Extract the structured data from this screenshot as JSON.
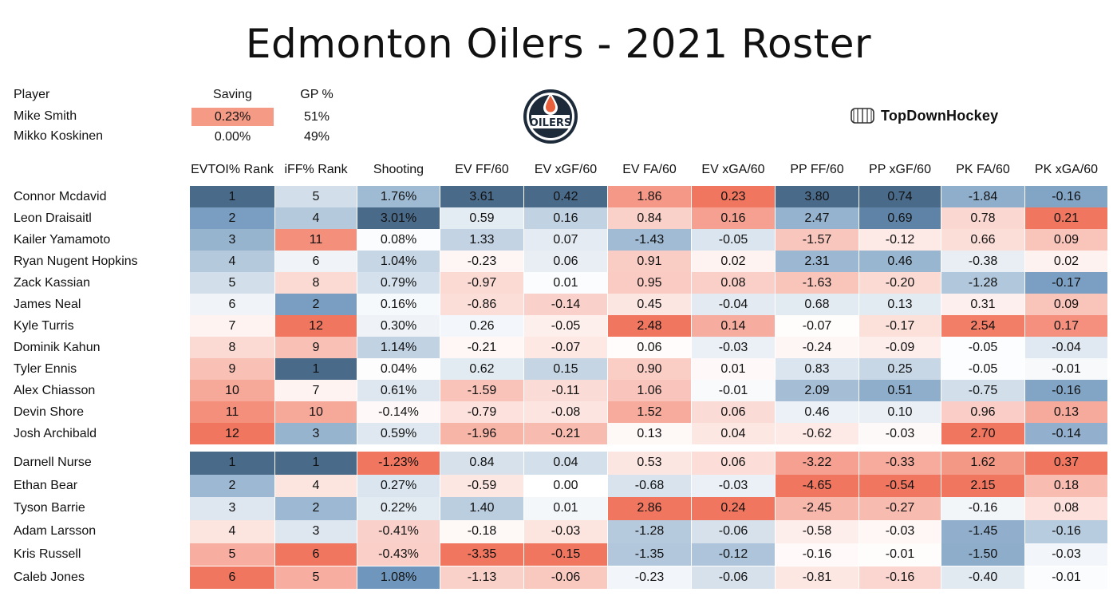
{
  "title": "Edmonton Oilers - 2021 Roster",
  "brand": {
    "name": "TopDownHockey",
    "icon": "hockey-rink-icon"
  },
  "logo": {
    "text": "OILERS"
  },
  "goalies": {
    "headers": [
      "Player",
      "Saving",
      "GP %"
    ],
    "rows": [
      {
        "player": "Mike Smith",
        "saving": "0.23%",
        "gp": "51%"
      },
      {
        "player": "Mikko Koskinen",
        "saving": "0.00%",
        "gp": "49%"
      }
    ]
  },
  "table": {
    "headers": [
      "EVTOI% Rank",
      "iFF% Rank",
      "Shooting",
      "EV FF/60",
      "EV xGF/60",
      "EV FA/60",
      "EV xGA/60",
      "PP FF/60",
      "PP xGF/60",
      "PK FA/60",
      "PK xGA/60"
    ],
    "forwards": [
      {
        "player": "Connor Mcdavid",
        "values": [
          "1",
          "5",
          "1.76%",
          "3.61",
          "0.42",
          "1.86",
          "0.23",
          "3.80",
          "0.74",
          "-1.84",
          "-0.16"
        ]
      },
      {
        "player": "Leon Draisaitl",
        "values": [
          "2",
          "4",
          "3.01%",
          "0.59",
          "0.16",
          "0.84",
          "0.16",
          "2.47",
          "0.69",
          "0.78",
          "0.21"
        ]
      },
      {
        "player": "Kailer Yamamoto",
        "values": [
          "3",
          "11",
          "0.08%",
          "1.33",
          "0.07",
          "-1.43",
          "-0.05",
          "-1.57",
          "-0.12",
          "0.66",
          "0.09"
        ]
      },
      {
        "player": "Ryan Nugent Hopkins",
        "values": [
          "4",
          "6",
          "1.04%",
          "-0.23",
          "0.06",
          "0.91",
          "0.02",
          "2.31",
          "0.46",
          "-0.38",
          "0.02"
        ]
      },
      {
        "player": "Zack Kassian",
        "values": [
          "5",
          "8",
          "0.79%",
          "-0.97",
          "0.01",
          "0.95",
          "0.08",
          "-1.63",
          "-0.20",
          "-1.28",
          "-0.17"
        ]
      },
      {
        "player": "James Neal",
        "values": [
          "6",
          "2",
          "0.16%",
          "-0.86",
          "-0.14",
          "0.45",
          "-0.04",
          "0.68",
          "0.13",
          "0.31",
          "0.09"
        ]
      },
      {
        "player": "Kyle Turris",
        "values": [
          "7",
          "12",
          "0.30%",
          "0.26",
          "-0.05",
          "2.48",
          "0.14",
          "-0.07",
          "-0.17",
          "2.54",
          "0.17"
        ]
      },
      {
        "player": "Dominik Kahun",
        "values": [
          "8",
          "9",
          "1.14%",
          "-0.21",
          "-0.07",
          "0.06",
          "-0.03",
          "-0.24",
          "-0.09",
          "-0.05",
          "-0.04"
        ]
      },
      {
        "player": "Tyler Ennis",
        "values": [
          "9",
          "1",
          "0.04%",
          "0.62",
          "0.15",
          "0.90",
          "0.01",
          "0.83",
          "0.25",
          "-0.05",
          "-0.01"
        ]
      },
      {
        "player": "Alex Chiasson",
        "values": [
          "10",
          "7",
          "0.61%",
          "-1.59",
          "-0.11",
          "1.06",
          "-0.01",
          "2.09",
          "0.51",
          "-0.75",
          "-0.16"
        ]
      },
      {
        "player": "Devin Shore",
        "values": [
          "11",
          "10",
          "-0.14%",
          "-0.79",
          "-0.08",
          "1.52",
          "0.06",
          "0.46",
          "0.10",
          "0.96",
          "0.13"
        ]
      },
      {
        "player": "Josh Archibald",
        "values": [
          "12",
          "3",
          "0.59%",
          "-1.96",
          "-0.21",
          "0.13",
          "0.04",
          "-0.62",
          "-0.03",
          "2.70",
          "-0.14"
        ]
      }
    ],
    "defense": [
      {
        "player": "Darnell Nurse",
        "values": [
          "1",
          "1",
          "-1.23%",
          "0.84",
          "0.04",
          "0.53",
          "0.06",
          "-3.22",
          "-0.33",
          "1.62",
          "0.37"
        ]
      },
      {
        "player": "Ethan Bear",
        "values": [
          "2",
          "4",
          "0.27%",
          "-0.59",
          "0.00",
          "-0.68",
          "-0.03",
          "-4.65",
          "-0.54",
          "2.15",
          "0.18"
        ]
      },
      {
        "player": "Tyson Barrie",
        "values": [
          "3",
          "2",
          "0.22%",
          "1.40",
          "0.01",
          "2.86",
          "0.24",
          "-2.45",
          "-0.27",
          "-0.16",
          "0.08"
        ]
      },
      {
        "player": "Adam Larsson",
        "values": [
          "4",
          "3",
          "-0.41%",
          "-0.18",
          "-0.03",
          "-1.28",
          "-0.06",
          "-0.58",
          "-0.03",
          "-1.45",
          "-0.16"
        ]
      },
      {
        "player": "Kris Russell",
        "values": [
          "5",
          "6",
          "-0.43%",
          "-3.35",
          "-0.15",
          "-1.35",
          "-0.12",
          "-0.16",
          "-0.01",
          "-1.50",
          "-0.03"
        ]
      },
      {
        "player": "Caleb Jones",
        "values": [
          "6",
          "5",
          "1.08%",
          "-1.13",
          "-0.06",
          "-0.23",
          "-0.06",
          "-0.81",
          "-0.16",
          "-0.40",
          "-0.01"
        ]
      }
    ]
  },
  "colors": {
    "good": "#6f97bd",
    "bad": "#f1765f",
    "dark_good": "#4a6a8a",
    "neutral": "#ffffff",
    "text": "#111111"
  },
  "chart_data": {
    "type": "table",
    "title": "Edmonton Oilers - 2021 Roster",
    "columns": [
      "Player",
      "EVTOI% Rank",
      "iFF% Rank",
      "Shooting",
      "EV FF/60",
      "EV xGF/60",
      "EV FA/60",
      "EV xGA/60",
      "PP FF/60",
      "PP xGF/60",
      "PK FA/60",
      "PK xGA/60"
    ],
    "groups": [
      "forwards",
      "defense"
    ],
    "color_scale": "diverging blue (good) to red (bad)"
  }
}
